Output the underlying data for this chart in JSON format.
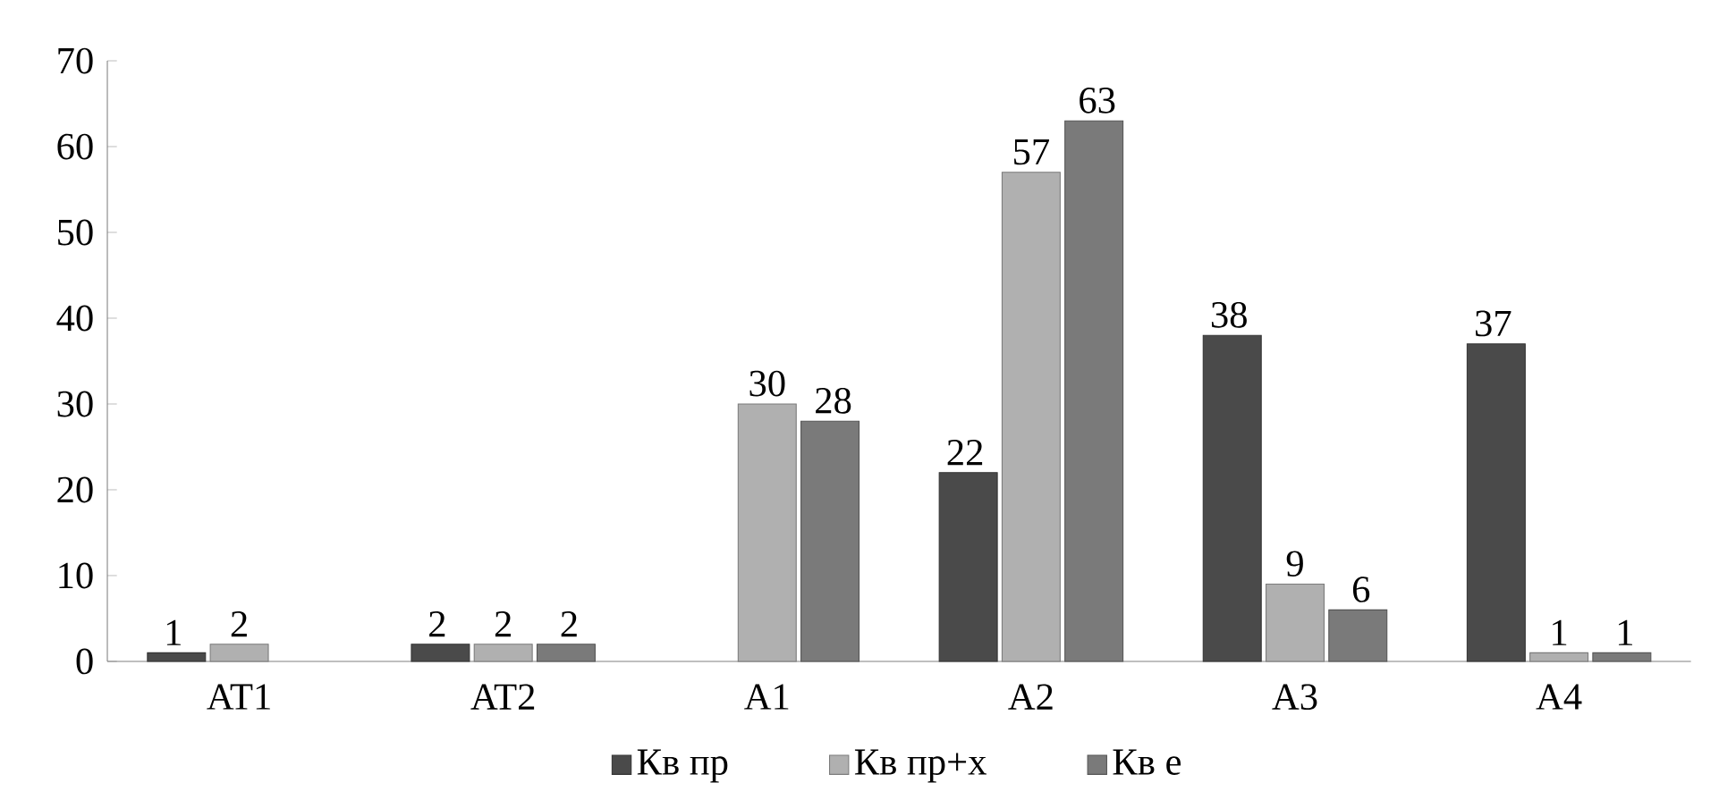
{
  "chart_data": {
    "type": "bar",
    "categories": [
      "AT1",
      "AT2",
      "A1",
      "A2",
      "A3",
      "A4"
    ],
    "series": [
      {
        "name": "Кв пр",
        "color": "#4a4a4a",
        "values": [
          1,
          2,
          null,
          22,
          38,
          37
        ]
      },
      {
        "name": "Кв пр+х",
        "color": "#b0b0b0",
        "values": [
          2,
          2,
          30,
          57,
          9,
          1
        ]
      },
      {
        "name": "Кв е",
        "color": "#7a7a7a",
        "values": [
          null,
          2,
          28,
          63,
          6,
          1
        ]
      }
    ],
    "ylim": [
      0,
      70
    ],
    "yticks": [
      0,
      10,
      20,
      30,
      40,
      50,
      60,
      70
    ],
    "data_labels": true,
    "legend": "bottom"
  }
}
